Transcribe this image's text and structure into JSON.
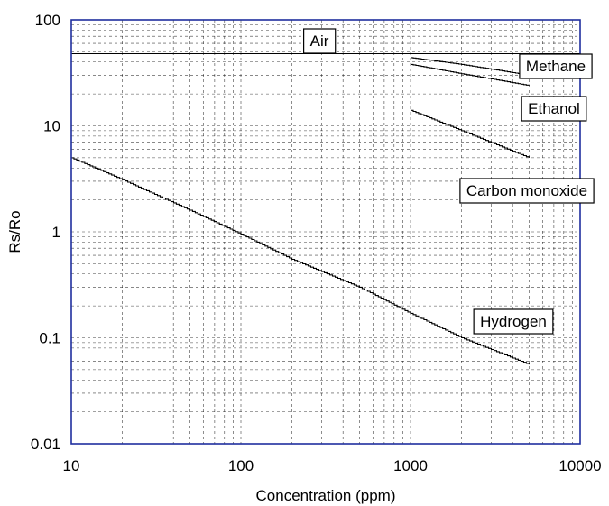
{
  "chart_data": {
    "type": "line",
    "title": "",
    "xlabel": "Concentration (ppm)",
    "ylabel": "Rs/Ro",
    "xscale": "log",
    "yscale": "log",
    "xlim": [
      10,
      10000
    ],
    "ylim": [
      0.01,
      100
    ],
    "grid": true,
    "x_ticks": [
      "10",
      "100",
      "1000",
      "10000"
    ],
    "y_ticks": [
      "0.01",
      "0.1",
      "1",
      "10",
      "100"
    ],
    "frame_color": "#1f2f9e",
    "series": [
      {
        "name": "Air",
        "x": [
          10,
          10000
        ],
        "y": [
          48,
          48
        ]
      },
      {
        "name": "Methane",
        "x": [
          1000,
          2000,
          5000
        ],
        "y": [
          44,
          38,
          30
        ]
      },
      {
        "name": "Ethanol",
        "x": [
          1000,
          2000,
          5000
        ],
        "y": [
          38,
          31,
          24
        ]
      },
      {
        "name": "Carbon monoxide",
        "x": [
          1000,
          2000,
          5000
        ],
        "y": [
          14,
          9,
          5
        ]
      },
      {
        "name": "Hydrogen",
        "x": [
          10,
          20,
          50,
          100,
          200,
          500,
          1000,
          2000,
          5000
        ],
        "y": [
          5,
          3.1,
          1.6,
          0.95,
          0.55,
          0.3,
          0.17,
          0.1,
          0.056
        ]
      }
    ],
    "annotations": [
      {
        "text": "Air",
        "series": "Air"
      },
      {
        "text": "Methane",
        "series": "Methane"
      },
      {
        "text": "Ethanol",
        "series": "Ethanol"
      },
      {
        "text": "Carbon monoxide",
        "series": "Carbon monoxide"
      },
      {
        "text": "Hydrogen",
        "series": "Hydrogen"
      }
    ]
  }
}
